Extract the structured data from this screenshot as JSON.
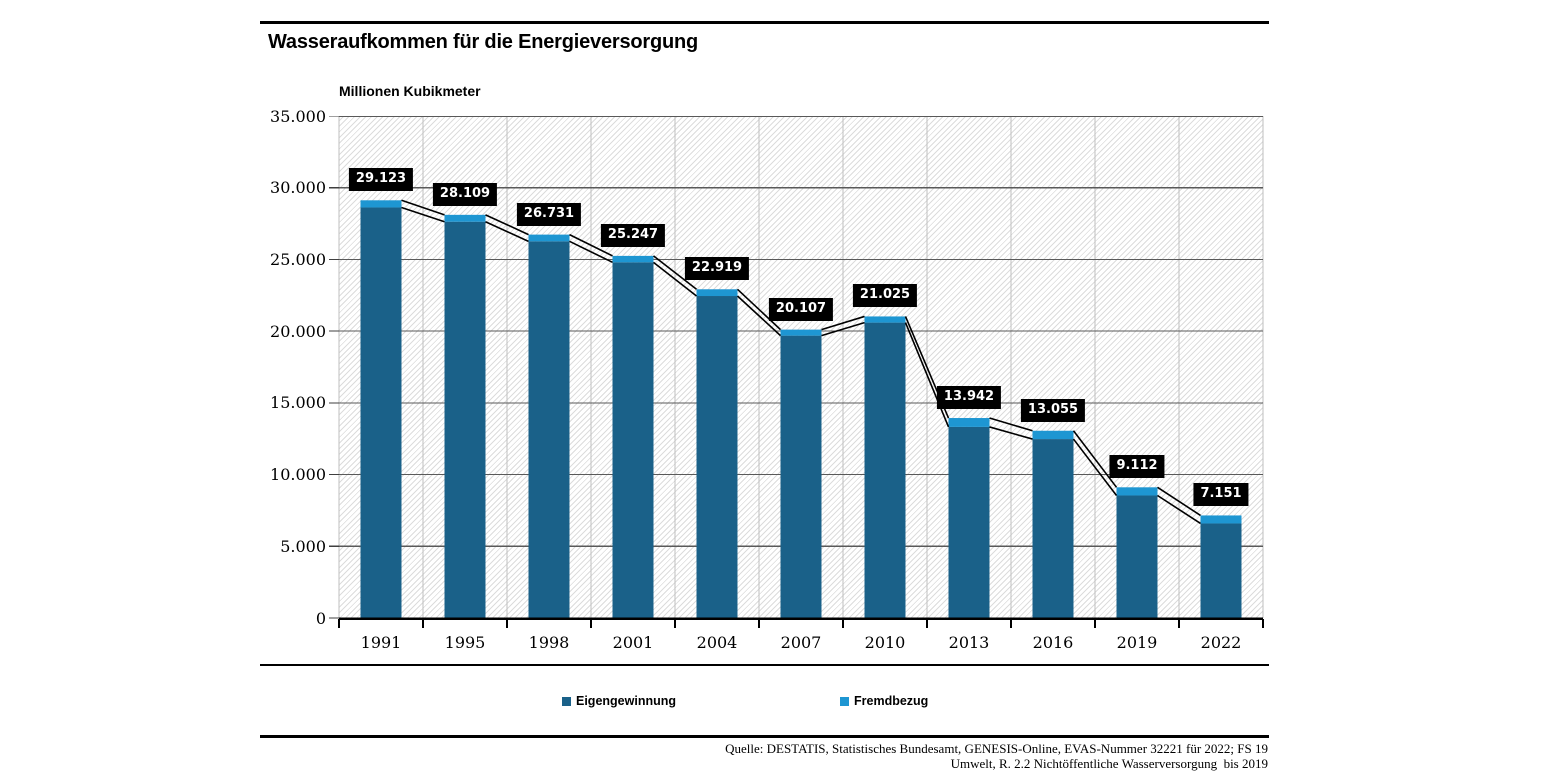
{
  "page": {
    "title": "Wasseraufkommen für die Energieversorgung",
    "unit_label": "Millionen Kubikmeter"
  },
  "chart_data": {
    "type": "bar",
    "stacked": true,
    "title": "Wasseraufkommen für die Energieversorgung",
    "ylabel": "Millionen Kubikmeter",
    "xlabel": "",
    "categories": [
      "1991",
      "1995",
      "1998",
      "2001",
      "2004",
      "2007",
      "2010",
      "2013",
      "2016",
      "2019",
      "2022"
    ],
    "series": [
      {
        "name": "Eigengewinnung",
        "color": "#1a6189",
        "values": [
          28623,
          27629,
          26261,
          24797,
          22449,
          19687,
          20595,
          13322,
          12475,
          8542,
          6591
        ]
      },
      {
        "name": "Fremdbezug",
        "color": "#1e96d2",
        "values": [
          500,
          480,
          470,
          450,
          470,
          420,
          430,
          620,
          580,
          570,
          560
        ]
      }
    ],
    "totals": [
      29123,
      28109,
      26731,
      25247,
      22919,
      20107,
      21025,
      13942,
      13055,
      9112,
      7151
    ],
    "total_labels": [
      "29.123",
      "28.109",
      "26.731",
      "25.247",
      "22.919",
      "20.107",
      "21.025",
      "13.942",
      "13.055",
      "9.112",
      "7.151"
    ],
    "ylim": [
      0,
      35000
    ],
    "ytick_step": 5000,
    "ytick_labels": [
      "0",
      "5.000",
      "10.000",
      "15.000",
      "20.000",
      "25.000",
      "30.000",
      "35.000"
    ],
    "grid": {
      "horizontal": true,
      "vertical": true,
      "background_hatch": true
    },
    "legend_position": "bottom",
    "series_lines": true,
    "colors": {
      "bar_dark": "#1a6189",
      "bar_light": "#1e96d2",
      "grid_horizontal": "#595959",
      "grid_vertical": "#bfbfbf",
      "axis": "#000000",
      "label_box_bg": "#000000",
      "label_box_text": "#ffffff"
    }
  },
  "legend": {
    "items": [
      {
        "label": "Eigengewinnung",
        "color": "#1a6189"
      },
      {
        "label": "Fremdbezug",
        "color": "#1e96d2"
      }
    ]
  },
  "footer": {
    "source_line1": "Quelle: DESTATIS, Statistisches Bundesamt, GENESIS-Online, EVAS-Nummer 32221 für 2022; FS 19",
    "source_line2": "Umwelt, R. 2.2 Nichtöffentliche Wasserversorgung  bis 2019"
  }
}
